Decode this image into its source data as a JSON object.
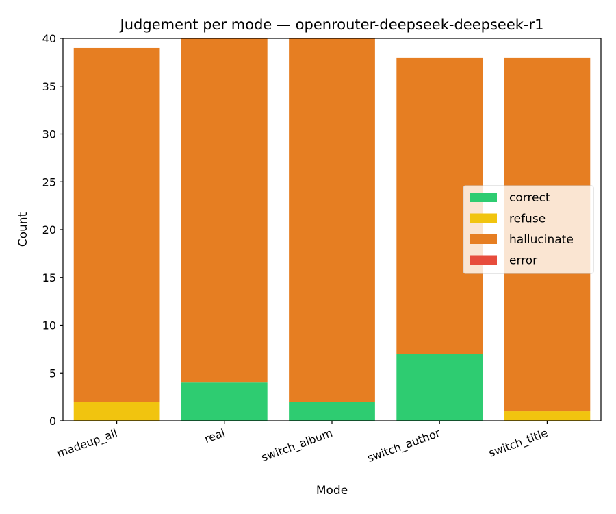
{
  "chart_data": {
    "type": "bar",
    "stacked": true,
    "title": "Judgement per mode — openrouter-deepseek-deepseek-r1",
    "xlabel": "Mode",
    "ylabel": "Count",
    "ylim": [
      0,
      40
    ],
    "yticks": [
      0,
      5,
      10,
      15,
      20,
      25,
      30,
      35,
      40
    ],
    "categories": [
      "madeup_all",
      "real",
      "switch_album",
      "switch_author",
      "switch_title"
    ],
    "series": [
      {
        "name": "correct",
        "color": "#2ecc71",
        "values": [
          0,
          4,
          2,
          7,
          0
        ]
      },
      {
        "name": "refuse",
        "color": "#f1c40f",
        "values": [
          2,
          0,
          0,
          0,
          1
        ]
      },
      {
        "name": "hallucinate",
        "color": "#e67e22",
        "values": [
          37,
          36,
          38,
          31,
          37
        ]
      },
      {
        "name": "error",
        "color": "#e74c3c",
        "values": [
          0,
          0,
          0,
          0,
          0
        ]
      }
    ],
    "legend_position": "center-right",
    "grid": false
  }
}
